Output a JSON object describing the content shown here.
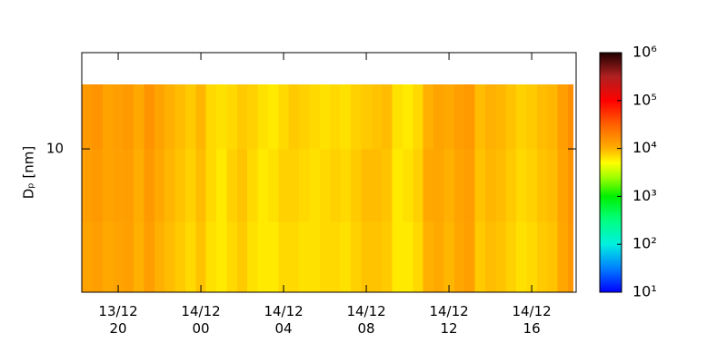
{
  "chart_data": {
    "type": "heatmap",
    "y_label": "Dₚ [nm]",
    "xbins": [
      18.25,
      18.75,
      19.25,
      19.75,
      20.25,
      20.75,
      21.25,
      21.75,
      22.25,
      22.75,
      23.25,
      23.75,
      24.25,
      24.75,
      25.25,
      25.75,
      26.25,
      26.75,
      27.25,
      27.75,
      28.25,
      28.75,
      29.25,
      29.75,
      30.25,
      30.75,
      31.25,
      31.75,
      32.25,
      32.75,
      33.25,
      33.75,
      34.25,
      34.75,
      35.25,
      35.75,
      36.25,
      36.75,
      37.25,
      37.75,
      38.25,
      38.75,
      39.25,
      39.75,
      40.25,
      40.75,
      41.25,
      41.75,
      42.0
    ],
    "ybins": [
      2.07,
      4.5,
      10,
      20.3
    ],
    "z": [
      [
        12000,
        13000,
        11000,
        12000,
        12500,
        10000,
        13000,
        10000,
        9000,
        8000,
        7000,
        8500,
        6500,
        6000,
        7000,
        8000,
        6500,
        6000,
        6000,
        7000,
        7000,
        6500,
        6500,
        7000,
        7000,
        6500,
        7500,
        8500,
        8500,
        8000,
        6000,
        6000,
        7000,
        10000,
        11000,
        9500,
        11500,
        12500,
        8000,
        9000,
        8500,
        7500,
        6500,
        7000,
        8000,
        8500,
        11500,
        14500
      ],
      [
        13000,
        14000,
        12000,
        12500,
        13000,
        10500,
        14000,
        11000,
        9500,
        8500,
        7500,
        9000,
        7000,
        6000,
        7500,
        8500,
        7000,
        6000,
        6500,
        7500,
        7500,
        7000,
        6500,
        7000,
        7500,
        7000,
        8000,
        9000,
        9000,
        8500,
        6000,
        6500,
        7500,
        11000,
        11500,
        10000,
        12000,
        13000,
        8500,
        9500,
        9000,
        8000,
        7000,
        7500,
        8500,
        9000,
        12000,
        15000
      ],
      [
        14000,
        15000,
        12000,
        13000,
        14000,
        11000,
        15000,
        12000,
        10000,
        9000,
        8000,
        9500,
        7000,
        6500,
        7000,
        8000,
        7500,
        6500,
        6000,
        7000,
        8000,
        7500,
        7000,
        6500,
        7000,
        6500,
        7500,
        8000,
        8500,
        9000,
        6500,
        6000,
        7000,
        10000,
        12000,
        11000,
        13000,
        14000,
        9000,
        10000,
        9500,
        8500,
        7500,
        8000,
        9000,
        9500,
        13000,
        16000
      ]
    ],
    "xlim": [
      18.24,
      42.15
    ],
    "xticks": [
      {
        "value": 20,
        "label": "13/12\n20"
      },
      {
        "value": 24,
        "label": "14/12\n00"
      },
      {
        "value": 28,
        "label": "14/12\n04"
      },
      {
        "value": 32,
        "label": "14/12\n08"
      },
      {
        "value": 36,
        "label": "14/12\n12"
      },
      {
        "value": 40,
        "label": "14/12\n16"
      }
    ],
    "ylim": [
      2.07,
      28.8
    ],
    "yticks": [
      10
    ],
    "ylog": true,
    "clim": [
      10,
      1000000
    ],
    "clog": true,
    "cticks": [
      {
        "value": 10,
        "label": "10¹"
      },
      {
        "value": 100,
        "label": "10²"
      },
      {
        "value": 1000,
        "label": "10³"
      },
      {
        "value": 10000,
        "label": "10⁴"
      },
      {
        "value": 100000,
        "label": "10⁵"
      },
      {
        "value": 1000000,
        "label": "10⁶"
      }
    ],
    "colorscale": [
      [
        1,
        "#0000ff"
      ],
      [
        1.5,
        "#0080ff"
      ],
      [
        2,
        "#00f0e0"
      ],
      [
        2.5,
        "#00ff80"
      ],
      [
        3,
        "#00f000"
      ],
      [
        3.4,
        "#a0ff00"
      ],
      [
        3.7,
        "#ffff00"
      ],
      [
        4,
        "#ffb000"
      ],
      [
        4.5,
        "#ff6000"
      ],
      [
        5,
        "#ff0000"
      ],
      [
        5.5,
        "#b02020"
      ],
      [
        6,
        "#200000"
      ]
    ]
  }
}
